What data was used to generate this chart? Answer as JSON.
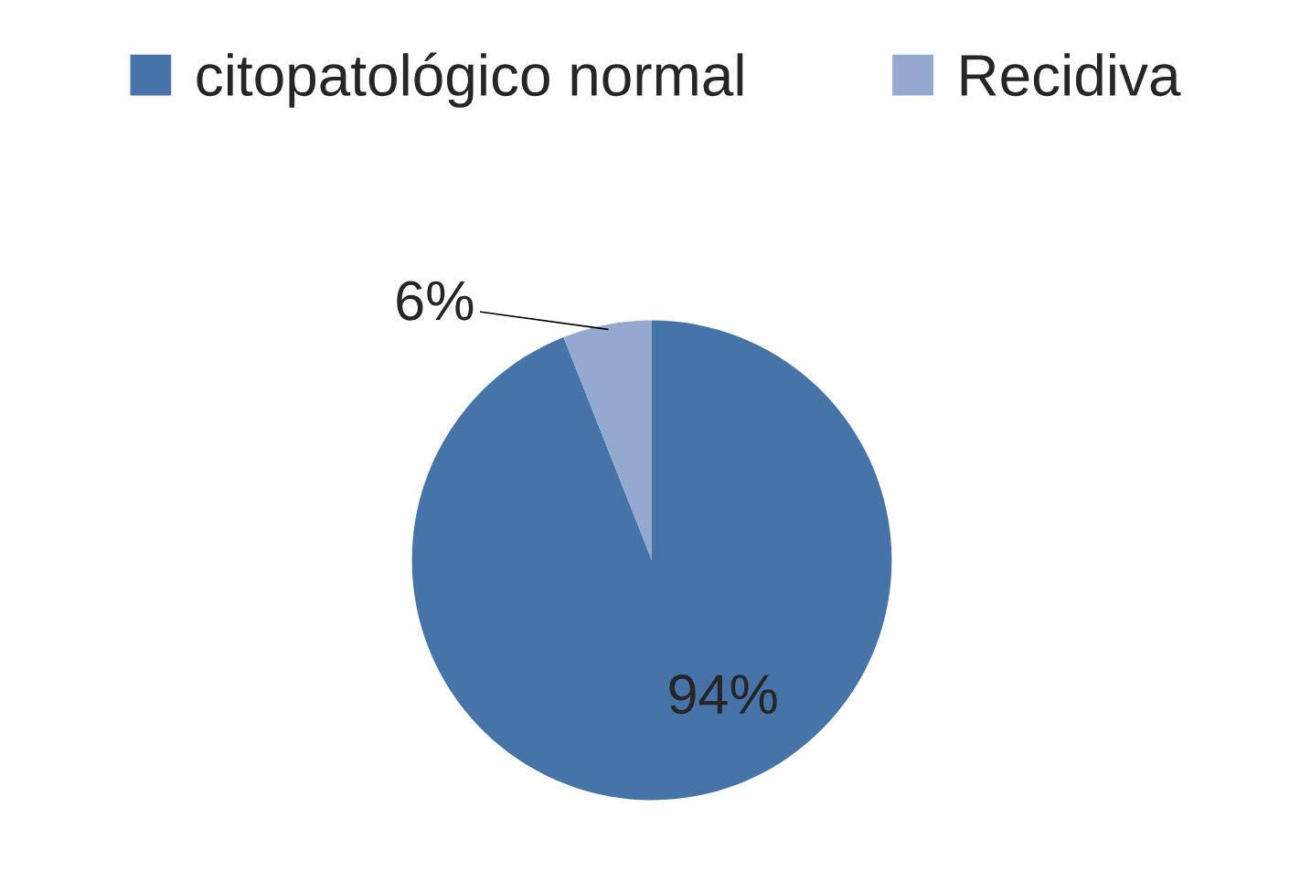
{
  "chart_data": {
    "type": "pie",
    "categories": [
      "citopatológico normal",
      "Recidiva"
    ],
    "values": [
      94,
      6
    ],
    "colors": [
      "#4673a8",
      "#93a9cf"
    ],
    "value_labels": [
      "94%",
      "6%"
    ],
    "legend": "top"
  }
}
